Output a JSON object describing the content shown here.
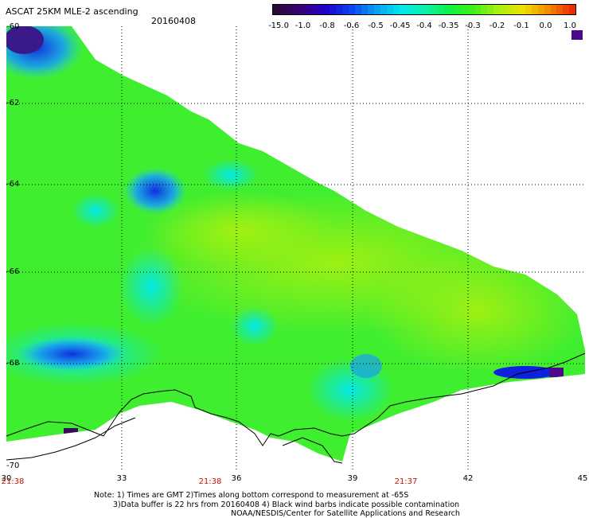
{
  "header": {
    "title": "ASCAT 25KM MLE-2 ascending",
    "date": "20160408"
  },
  "colorbar": {
    "labels": [
      "-15.0",
      "-1.0",
      "-0.8",
      "-0.6",
      "-0.5",
      "-0.45",
      "-0.4",
      "-0.35",
      "-0.3",
      "-0.2",
      "-0.1",
      "0.0",
      "1.0"
    ],
    "colors": [
      "#2a0a35",
      "#3a007a",
      "#1e00c8",
      "#0a40f0",
      "#0a9cf0",
      "#00e6f0",
      "#10f0b0",
      "#10f040",
      "#40f018",
      "#a8f010",
      "#f0e000",
      "#f08c00",
      "#f02a00"
    ]
  },
  "map": {
    "lat_labels": [
      "-60",
      "-62",
      "-64",
      "-66",
      "-68",
      "-70"
    ],
    "lon_labels": [
      "30",
      "33",
      "36",
      "39",
      "42",
      "45"
    ],
    "time_labels": [
      "21:38",
      "21:38",
      "21:37"
    ]
  },
  "footer": {
    "note1": "Note: 1) Times are GMT 2)Times along bottom correspond to measurement at -65S",
    "note2": "3)Data buffer is 22 hrs from 20160408 4) Black wind barbs indicate possible contamination",
    "credit": "NOAA/NESDIS/Center for Satellite Applications and Research"
  }
}
